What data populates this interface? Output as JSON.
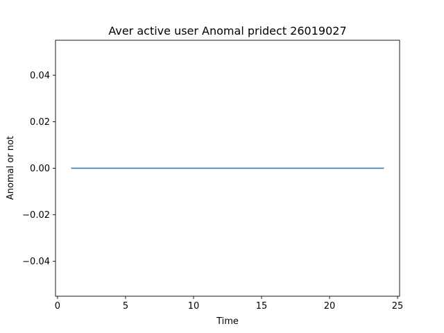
{
  "chart_data": {
    "type": "line",
    "title": "Aver active user Anomal pridect 26019027",
    "xlabel": "Time",
    "ylabel": "Anomal or not",
    "xlim": [
      -0.15,
      25.15
    ],
    "ylim": [
      -0.055,
      0.055
    ],
    "xticks": [
      0,
      5,
      10,
      15,
      20,
      25
    ],
    "xtick_labels": [
      "0",
      "5",
      "10",
      "15",
      "20",
      "25"
    ],
    "yticks": [
      -0.04,
      -0.02,
      0.0,
      0.02,
      0.04
    ],
    "ytick_labels": [
      "−0.04",
      "−0.02",
      "0.00",
      "0.02",
      "0.04"
    ],
    "grid": false,
    "series": [
      {
        "color": "#1f77b4",
        "x": [
          1,
          2,
          3,
          4,
          5,
          6,
          7,
          8,
          9,
          10,
          11,
          12,
          13,
          14,
          15,
          16,
          17,
          18,
          19,
          20,
          21,
          22,
          23,
          24
        ],
        "values": [
          0,
          0,
          0,
          0,
          0,
          0,
          0,
          0,
          0,
          0,
          0,
          0,
          0,
          0,
          0,
          0,
          0,
          0,
          0,
          0,
          0,
          0,
          0,
          0
        ]
      }
    ]
  }
}
